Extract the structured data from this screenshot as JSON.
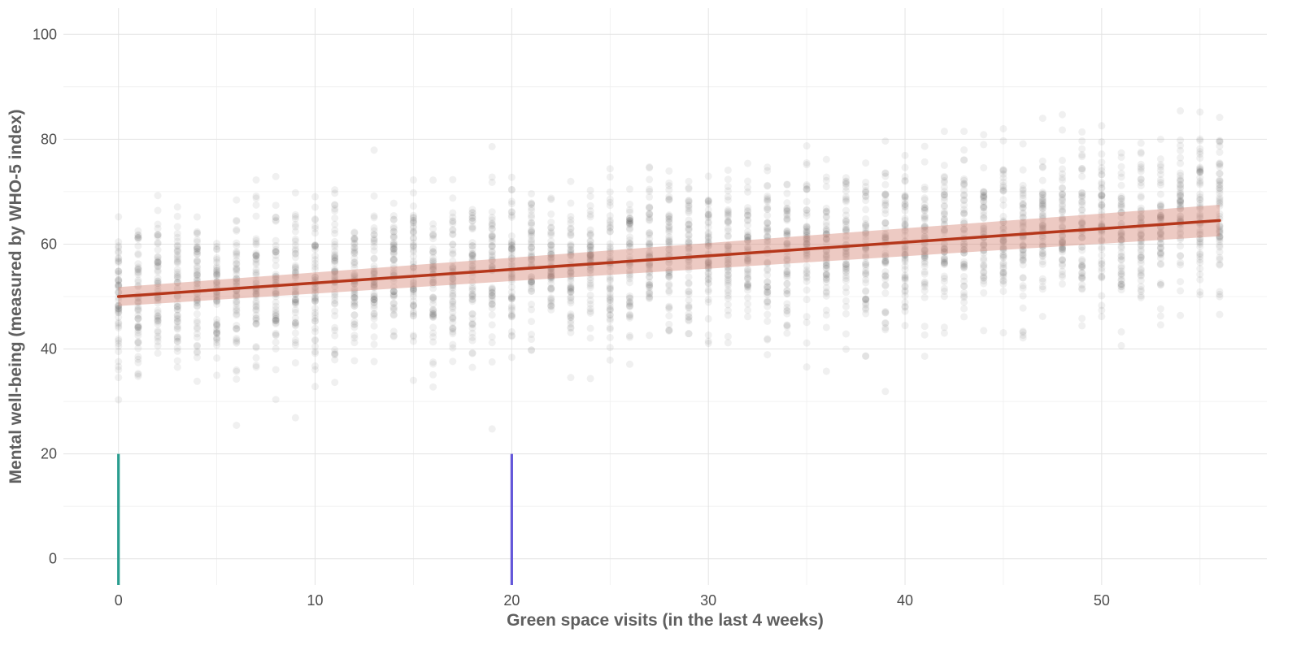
{
  "chart_data": {
    "type": "scatter",
    "title": "",
    "xlabel": "Green space visits (in the last 4 weeks)",
    "ylabel": "Mental well-being (measured by WHO-5 index)",
    "xlim": [
      -2.8,
      58.4
    ],
    "ylim": [
      -5,
      105
    ],
    "x_ticks": [
      0,
      10,
      20,
      30,
      40,
      50
    ],
    "y_ticks": [
      0,
      20,
      40,
      60,
      80,
      100
    ],
    "grid": true,
    "point_color": "#3c3c3c",
    "point_alpha": 0.075,
    "point_columns": {
      "x_from": 0,
      "x_to": 56,
      "points_per_column": 55,
      "spread_sd": 7.5
    },
    "trend": {
      "type": "linear fit",
      "color": "#b5371b",
      "band_color": "#d88a7a",
      "x": [
        0,
        56
      ],
      "y": [
        50,
        64.5
      ],
      "band_half_width": [
        1.8,
        3.0
      ]
    },
    "markers": [
      {
        "x": 0,
        "label": "0",
        "color": "#2a9d8f",
        "y_from": -5,
        "y_to": 20
      },
      {
        "x": 20,
        "label": "20",
        "color": "#6457d9",
        "y_from": -5,
        "y_to": 20
      }
    ]
  }
}
